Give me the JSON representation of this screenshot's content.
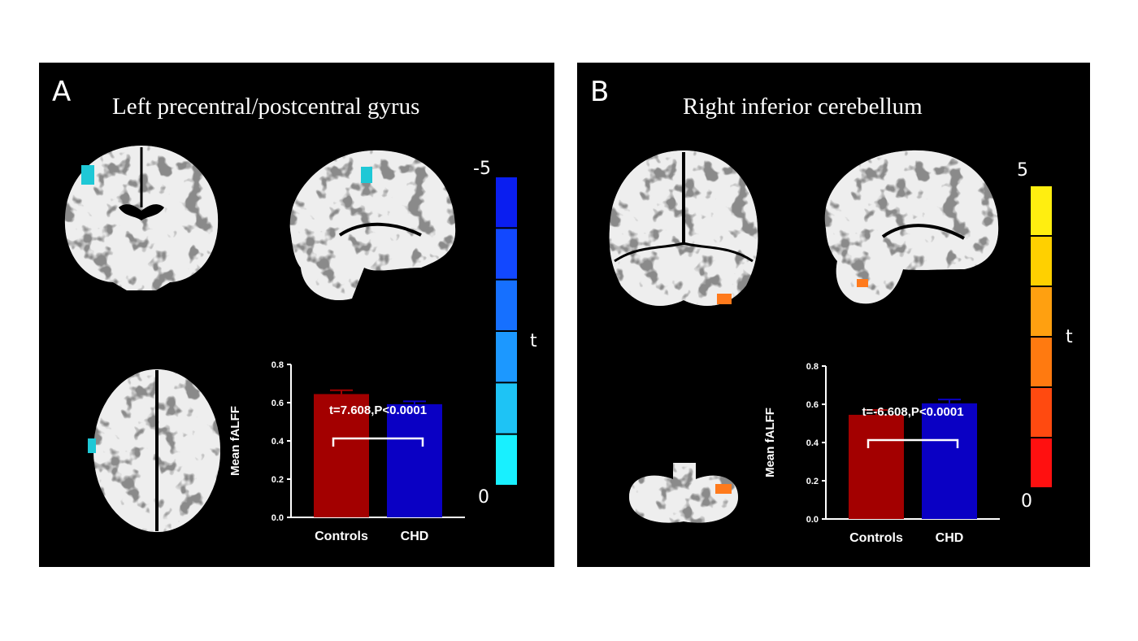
{
  "panels": [
    {
      "letter": "A",
      "title": "Left precentral/postcentral gyrus",
      "colorbar": {
        "top_label": "-5",
        "bottom_label": "0",
        "axis_label": "t",
        "colors": [
          "#0a1ef0",
          "#1248ff",
          "#1670ff",
          "#1c98ff",
          "#1ec3f5",
          "#18f0ff"
        ]
      },
      "blob_color": "#1fc8d6"
    },
    {
      "letter": "B",
      "title": "Right inferior cerebellum",
      "colorbar": {
        "top_label": "5",
        "bottom_label": "0",
        "axis_label": "t",
        "colors": [
          "#ffee10",
          "#ffd000",
          "#ffa010",
          "#ff7a10",
          "#ff4a10",
          "#ff1010"
        ]
      },
      "blob_color": "#ff7a1c"
    }
  ],
  "chart_data": [
    {
      "type": "bar",
      "categories": [
        "Controls",
        "CHD"
      ],
      "values": [
        0.645,
        0.592
      ],
      "error": [
        0.02,
        0.015
      ],
      "colors": [
        "#a30000",
        "#0a00c4"
      ],
      "ylabel": "Mean fALFF",
      "ylim": [
        0,
        0.8
      ],
      "yticks": [
        "0.0",
        "0.2",
        "0.4",
        "0.6",
        "0.8"
      ],
      "annotation": "t=7.608,P<0.0001"
    },
    {
      "type": "bar",
      "categories": [
        "Controls",
        "CHD"
      ],
      "values": [
        0.545,
        0.605
      ],
      "error": [
        0.025,
        0.02
      ],
      "colors": [
        "#a30000",
        "#0a00c4"
      ],
      "ylabel": "Mean fALFF",
      "ylim": [
        0,
        0.8
      ],
      "yticks": [
        "0.0",
        "0.2",
        "0.4",
        "0.6",
        "0.8"
      ],
      "annotation": "t=-6.608,P<0.0001"
    }
  ]
}
